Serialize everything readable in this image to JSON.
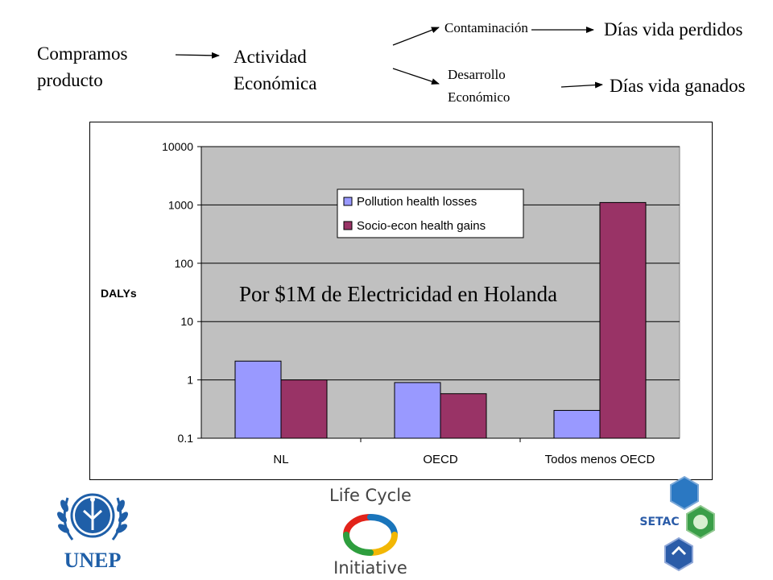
{
  "flow": {
    "step1_line1": "Compramos",
    "step1_line2": "producto",
    "step2_line1": "Actividad",
    "step2_line2": "Económica",
    "branch_top": "Contaminación",
    "branch_bottom_line1": "Desarrollo",
    "branch_bottom_line2": "Económico",
    "outcome_top": "Días vida perdidos",
    "outcome_bottom": "Días vida ganados"
  },
  "colors": {
    "plot_bg": "#c0c0c0",
    "series_losses": "#9999ff",
    "series_gains": "#993366",
    "gridline": "#000000"
  },
  "chart_data": {
    "type": "bar",
    "title": "",
    "overlay_text": "Por $1M de Electricidad en Holanda",
    "xlabel": "",
    "ylabel": "DALYs",
    "yscale": "log",
    "ylim": [
      0.1,
      10000
    ],
    "yticks": [
      {
        "value": 0.1,
        "label": "0.1"
      },
      {
        "value": 1,
        "label": "1"
      },
      {
        "value": 10,
        "label": "10"
      },
      {
        "value": 100,
        "label": "100"
      },
      {
        "value": 1000,
        "label": "1000"
      },
      {
        "value": 10000,
        "label": "10000"
      }
    ],
    "grid": true,
    "legend_position": "top-center",
    "categories": [
      "NL",
      "OECD",
      "Todos menos OECD"
    ],
    "series": [
      {
        "name": "Pollution health losses",
        "color": "#9999ff",
        "values": [
          2.1,
          0.9,
          0.3
        ]
      },
      {
        "name": "Socio-econ health gains",
        "color": "#993366",
        "values": [
          1.0,
          0.58,
          1100
        ]
      }
    ]
  },
  "logos": {
    "left": "UNEP",
    "center_line1": "Life Cycle",
    "center_line2": "Initiative",
    "right": "SETAC"
  }
}
